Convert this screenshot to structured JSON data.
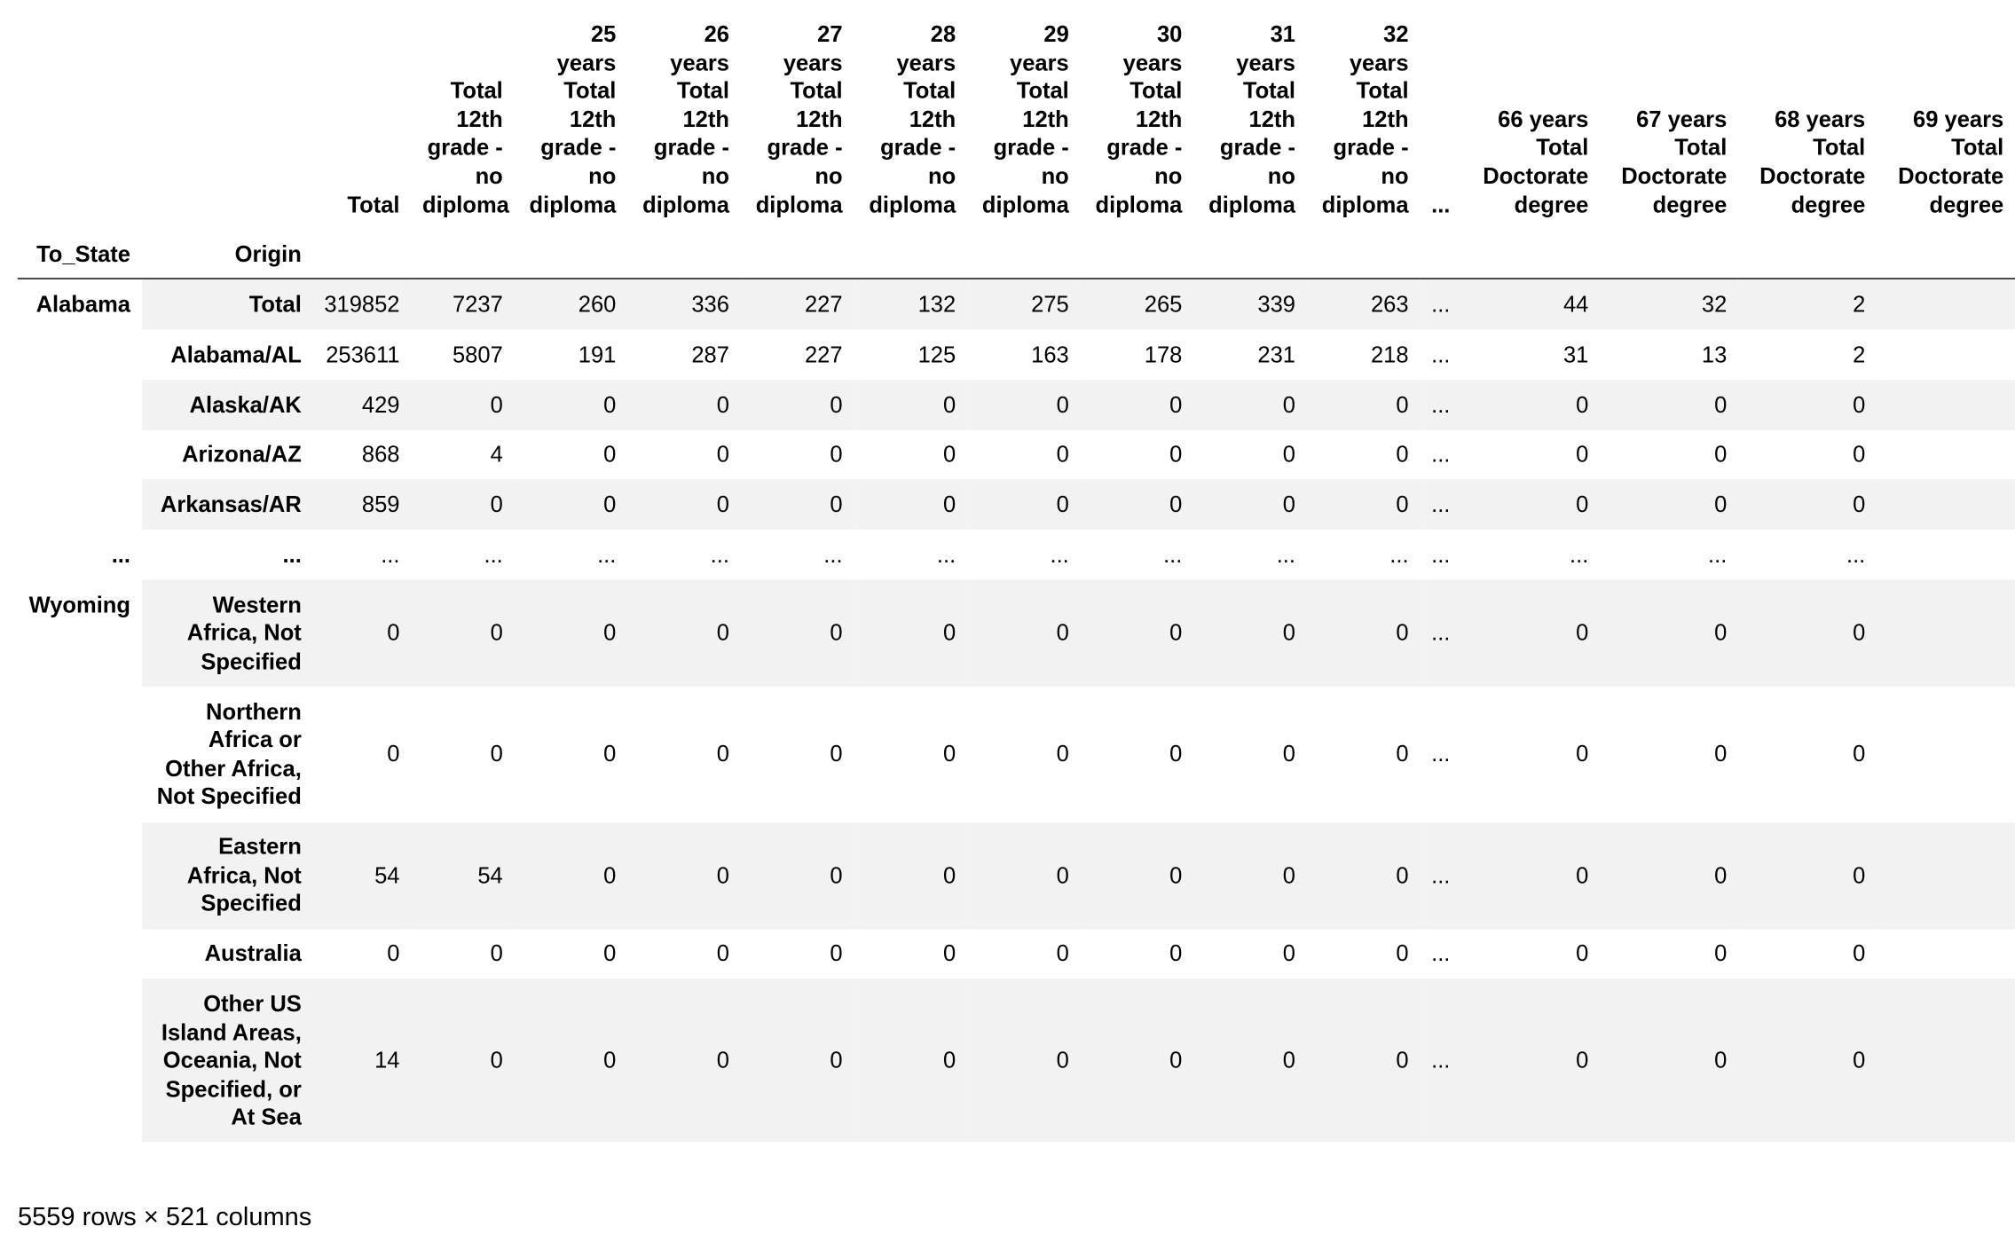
{
  "table": {
    "index_names": [
      "To_State",
      "Origin"
    ],
    "columns": [
      {
        "label": "Total",
        "wrap": false,
        "width": 0
      },
      {
        "label": "Total 12th grade - no diploma",
        "wrap": true,
        "width": 64
      },
      {
        "label": "25 years Total 12th grade - no diploma",
        "wrap": true,
        "width": 72
      },
      {
        "label": "26 years Total 12th grade - no diploma",
        "wrap": true,
        "width": 72
      },
      {
        "label": "27 years Total 12th grade - no diploma",
        "wrap": true,
        "width": 72
      },
      {
        "label": "28 years Total 12th grade - no diploma",
        "wrap": true,
        "width": 72
      },
      {
        "label": "29 years Total 12th grade - no diploma",
        "wrap": true,
        "width": 72
      },
      {
        "label": "30 years Total 12th grade - no diploma",
        "wrap": true,
        "width": 72
      },
      {
        "label": "31 years Total 12th grade - no diploma",
        "wrap": true,
        "width": 72
      },
      {
        "label": "32 years Total 12th grade - no diploma",
        "wrap": true,
        "width": 72
      },
      {
        "label": "...",
        "wrap": false,
        "width": 0
      },
      {
        "label": "66 years Total Doctorate degree",
        "wrap": true,
        "width": 92
      },
      {
        "label": "67 years Total Doctorate degree",
        "wrap": true,
        "width": 92
      },
      {
        "label": "68 years Total Doctorate degree",
        "wrap": true,
        "width": 92
      },
      {
        "label": "69 years Total Doctorate degree",
        "wrap": true,
        "width": 92
      }
    ],
    "groups": [
      {
        "state": "Alabama",
        "rows": [
          {
            "origin": "Total",
            "values": [
              "319852",
              "7237",
              "260",
              "336",
              "227",
              "132",
              "275",
              "265",
              "339",
              "263",
              "...",
              "44",
              "32",
              "2",
              ""
            ]
          },
          {
            "origin": "Alabama/AL",
            "values": [
              "253611",
              "5807",
              "191",
              "287",
              "227",
              "125",
              "163",
              "178",
              "231",
              "218",
              "...",
              "31",
              "13",
              "2",
              ""
            ]
          },
          {
            "origin": "Alaska/AK",
            "values": [
              "429",
              "0",
              "0",
              "0",
              "0",
              "0",
              "0",
              "0",
              "0",
              "0",
              "...",
              "0",
              "0",
              "0",
              ""
            ]
          },
          {
            "origin": "Arizona/AZ",
            "values": [
              "868",
              "4",
              "0",
              "0",
              "0",
              "0",
              "0",
              "0",
              "0",
              "0",
              "...",
              "0",
              "0",
              "0",
              ""
            ]
          },
          {
            "origin": "Arkansas/AR",
            "values": [
              "859",
              "0",
              "0",
              "0",
              "0",
              "0",
              "0",
              "0",
              "0",
              "0",
              "...",
              "0",
              "0",
              "0",
              ""
            ]
          }
        ]
      },
      {
        "state": "...",
        "rows": [
          {
            "origin": "...",
            "values": [
              "...",
              "...",
              "...",
              "...",
              "...",
              "...",
              "...",
              "...",
              "...",
              "...",
              "...",
              "...",
              "...",
              "...",
              ""
            ]
          }
        ]
      },
      {
        "state": "Wyoming",
        "rows": [
          {
            "origin": "Western Africa, Not Specified",
            "values": [
              "0",
              "0",
              "0",
              "0",
              "0",
              "0",
              "0",
              "0",
              "0",
              "0",
              "...",
              "0",
              "0",
              "0",
              ""
            ]
          },
          {
            "origin": "Northern Africa or Other Africa, Not Specified",
            "values": [
              "0",
              "0",
              "0",
              "0",
              "0",
              "0",
              "0",
              "0",
              "0",
              "0",
              "...",
              "0",
              "0",
              "0",
              ""
            ]
          },
          {
            "origin": "Eastern Africa, Not Specified",
            "values": [
              "54",
              "54",
              "0",
              "0",
              "0",
              "0",
              "0",
              "0",
              "0",
              "0",
              "...",
              "0",
              "0",
              "0",
              ""
            ]
          },
          {
            "origin": "Australia",
            "values": [
              "0",
              "0",
              "0",
              "0",
              "0",
              "0",
              "0",
              "0",
              "0",
              "0",
              "...",
              "0",
              "0",
              "0",
              ""
            ]
          },
          {
            "origin": "Other US Island Areas, Oceania, Not Specified, or At Sea",
            "values": [
              "14",
              "0",
              "0",
              "0",
              "0",
              "0",
              "0",
              "0",
              "0",
              "0",
              "...",
              "0",
              "0",
              "0",
              ""
            ]
          }
        ]
      }
    ]
  },
  "shape_note": "5559 rows × 521 columns"
}
